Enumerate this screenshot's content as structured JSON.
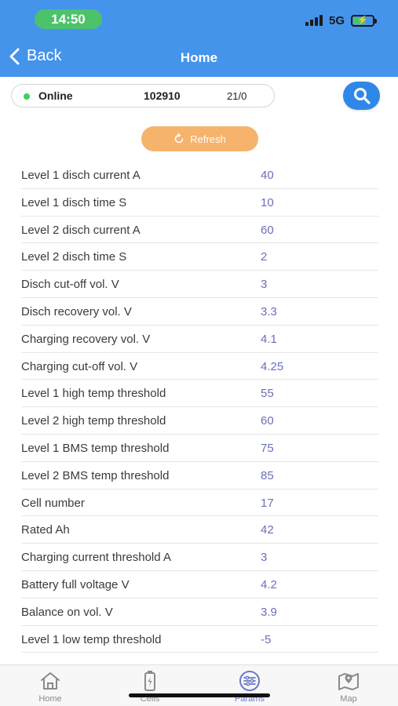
{
  "status_bar": {
    "time": "14:50",
    "network": "5G"
  },
  "header": {
    "back_label": "Back",
    "title": "Home"
  },
  "device": {
    "state": "Online",
    "id": "102910",
    "count": "21/0"
  },
  "refresh_label": "Refresh",
  "params": [
    {
      "label": "Level 1 disch current A",
      "value": "40"
    },
    {
      "label": "Level 1 disch time S",
      "value": "10"
    },
    {
      "label": "Level 2 disch current A",
      "value": "60"
    },
    {
      "label": "Level 2 disch time S",
      "value": "2"
    },
    {
      "label": "Disch cut-off vol. V",
      "value": "3"
    },
    {
      "label": "Disch recovery vol. V",
      "value": "3.3"
    },
    {
      "label": "Charging recovery vol. V",
      "value": "4.1"
    },
    {
      "label": "Charging cut-off vol. V",
      "value": "4.25"
    },
    {
      "label": "Level 1 high temp threshold",
      "value": "55"
    },
    {
      "label": "Level 2 high temp threshold",
      "value": "60"
    },
    {
      "label": "Level 1 BMS temp threshold",
      "value": "75"
    },
    {
      "label": "Level 2 BMS temp threshold",
      "value": "85"
    },
    {
      "label": "Cell number",
      "value": "17"
    },
    {
      "label": "Rated Ah",
      "value": "42"
    },
    {
      "label": "Charging current threshold A",
      "value": "3"
    },
    {
      "label": "Battery full voltage V",
      "value": "4.2"
    },
    {
      "label": "Balance on vol. V",
      "value": "3.9"
    },
    {
      "label": "Level 1 low temp threshold",
      "value": "-5"
    }
  ],
  "tabs": [
    {
      "label": "Home",
      "icon": "home-icon"
    },
    {
      "label": "Cells",
      "icon": "battery-cell-icon"
    },
    {
      "label": "Params",
      "icon": "sliders-icon"
    },
    {
      "label": "Map",
      "icon": "map-icon"
    }
  ],
  "colors": {
    "header": "#4594ec",
    "refresh": "#f6b36b",
    "search": "#2f88e8",
    "online": "#3fcf5f",
    "value": "#6a6fb8",
    "active_tab": "#6b79c9"
  }
}
